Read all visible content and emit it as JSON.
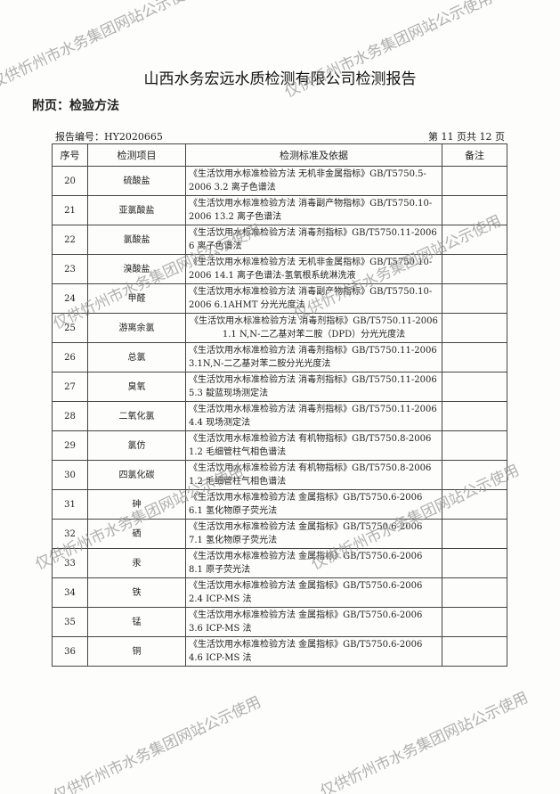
{
  "header": {
    "title": "山西水务宏远水质检测有限公司检测报告",
    "subtitle": "附页：检验方法",
    "report_no": "报告编号：HY2020665",
    "page_info": "第 11 页共 12 页"
  },
  "table": {
    "columns": [
      "序号",
      "检测项目",
      "检测标准及依据",
      "备注"
    ],
    "rows": [
      {
        "no": "20",
        "item": "硫酸盐",
        "method": "《生活饮用水标准检验方法 无机非金属指标》GB/T5750.5-2006 3.2 离子色谱法",
        "note": ""
      },
      {
        "no": "21",
        "item": "亚氯酸盐",
        "method": "《生活饮用水标准检验方法 消毒副产物指标》GB/T5750.10-2006 13.2 离子色谱法",
        "note": ""
      },
      {
        "no": "22",
        "item": "氯酸盐",
        "method": "《生活饮用水标准检验方法 消毒剂指标》GB/T5750.11-2006 6 离子色谱法",
        "note": ""
      },
      {
        "no": "23",
        "item": "溴酸盐",
        "method": "《生活饮用水标准检验方法 无机非金属指标》GB/T5750.10-2006 14.1 离子色谱法-氢氧根系统淋洗液",
        "note": ""
      },
      {
        "no": "24",
        "item": "甲醛",
        "method": "《生活饮用水标准检验方法 消毒副产物指标》GB/T5750.10-2006 6.1AHMT 分光光度法",
        "note": ""
      },
      {
        "no": "25",
        "item": "游离余氯",
        "method": "《生活饮用水标准检验方法 消毒剂指标》GB/T5750.11-2006 1.1 N,N-二乙基对苯二胺（DPD）分光光度法",
        "note": ""
      },
      {
        "no": "26",
        "item": "总氯",
        "method": "《生活饮用水标准检验方法 消毒剂指标》GB/T5750.11-2006 3.1N,N-二乙基对苯二胺分光光度法",
        "note": ""
      },
      {
        "no": "27",
        "item": "臭氧",
        "method": "《生活饮用水标准检验方法 消毒剂指标》GB/T5750.11-2006 5.3 靛蓝现场测定法",
        "note": ""
      },
      {
        "no": "28",
        "item": "二氧化氯",
        "method": "《生活饮用水标准检验方法 消毒剂指标》GB/T5750.11-2006 4.4 现场测定法",
        "note": ""
      },
      {
        "no": "29",
        "item": "氯仿",
        "method": "《生活饮用水标准检验方法 有机物指标》GB/T5750.8-2006 1.2 毛细管柱气相色谱法",
        "note": ""
      },
      {
        "no": "30",
        "item": "四氯化碳",
        "method": "《生活饮用水标准检验方法 有机物指标》GB/T5750.8-2006 1.2 毛细管柱气相色谱法",
        "note": ""
      },
      {
        "no": "31",
        "item": "砷",
        "method": "《生活饮用水标准检验方法 金属指标》GB/T5750.6-2006 6.1 氢化物原子荧光法",
        "note": ""
      },
      {
        "no": "32",
        "item": "硒",
        "method": "《生活饮用水标准检验方法 金属指标》GB/T5750.6-2006 7.1 氢化物原子荧光法",
        "note": ""
      },
      {
        "no": "33",
        "item": "汞",
        "method": "《生活饮用水标准检验方法 金属指标》GB/T5750.6-2006 8.1 原子荧光法",
        "note": ""
      },
      {
        "no": "34",
        "item": "铁",
        "method": "《生活饮用水标准检验方法 金属指标》GB/T5750.6-2006 2.4 ICP-MS 法",
        "note": ""
      },
      {
        "no": "35",
        "item": "锰",
        "method": "《生活饮用水标准检验方法 金属指标》GB/T5750.6-2006 3.6 ICP-MS 法",
        "note": ""
      },
      {
        "no": "36",
        "item": "铜",
        "method": "《生活饮用水标准检验方法 金属指标》GB/T5750.6-2006 4.6 ICP-MS 法",
        "note": ""
      }
    ]
  },
  "watermark": "仅供忻州市水务集团网站公示使用"
}
